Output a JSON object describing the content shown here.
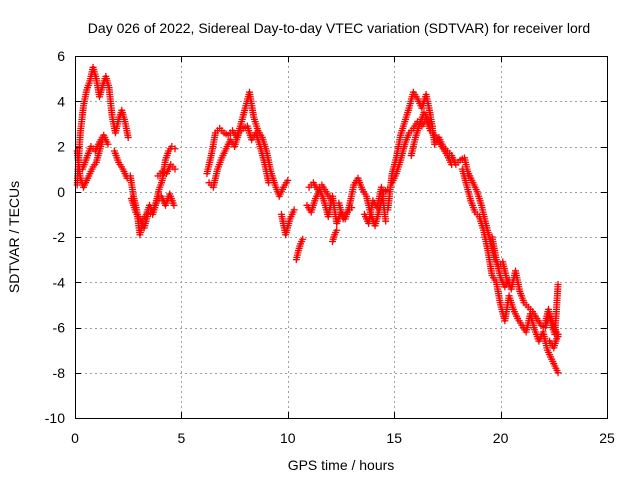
{
  "chart_data": {
    "type": "scatter",
    "title": "Day 026 of 2022, Sidereal Day-to-day VTEC variation (SDTVAR) for receiver lord",
    "xlabel": "GPS time / hours",
    "ylabel": "SDTVAR / TECUs",
    "xlim": [
      0,
      25
    ],
    "ylim": [
      -10,
      6
    ],
    "xticks": [
      0,
      5,
      10,
      15,
      20,
      25
    ],
    "yticks": [
      -10,
      -8,
      -6,
      -4,
      -2,
      0,
      2,
      4,
      6
    ],
    "xtick_labels": [
      "0",
      "5",
      "10",
      "15",
      "20",
      "25"
    ],
    "ytick_labels": [
      "-10",
      "-8",
      "-6",
      "-4",
      "-2",
      "0",
      "2",
      "4",
      "6"
    ],
    "grid": true,
    "marker": "plus",
    "color": "#ff0000",
    "series": [
      {
        "name": "SDTVAR",
        "segments": [
          {
            "x": [
              0.1,
              0.25,
              0.4,
              0.55,
              0.7,
              0.85,
              1.0,
              1.15,
              1.3,
              1.45,
              1.6,
              1.75,
              1.9,
              2.05,
              2.2,
              2.35,
              2.5
            ],
            "y": [
              0.3,
              2.6,
              3.8,
              4.5,
              4.9,
              5.5,
              5.0,
              4.2,
              4.7,
              5.1,
              4.6,
              3.3,
              2.6,
              3.2,
              3.6,
              3.1,
              2.4
            ]
          },
          {
            "x": [
              0.1,
              0.25,
              0.4,
              0.55,
              0.7,
              0.85,
              1.0,
              1.15,
              1.3
            ],
            "y": [
              1.8,
              0.6,
              0.2,
              0.5,
              0.8,
              1.1,
              1.3,
              1.8,
              2.3
            ]
          },
          {
            "x": [
              0.35,
              0.55,
              0.75,
              0.95,
              1.15,
              1.35,
              1.55
            ],
            "y": [
              1.0,
              1.5,
              2.0,
              1.8,
              2.2,
              2.5,
              2.1
            ]
          },
          {
            "x": [
              1.85,
              2.05,
              2.25,
              2.45
            ],
            "y": [
              1.8,
              1.3,
              1.0,
              0.6
            ]
          },
          {
            "x": [
              2.6,
              2.75,
              2.9,
              3.05,
              3.2,
              3.35,
              3.5,
              3.65,
              3.8,
              3.95,
              4.1,
              4.25,
              4.4,
              4.55,
              4.7
            ],
            "y": [
              0.7,
              -0.2,
              -0.8,
              -1.9,
              -1.2,
              -1.0,
              -0.6,
              -0.9,
              -0.5,
              0.1,
              0.5,
              1.4,
              1.8,
              2.0,
              1.9
            ]
          },
          {
            "x": [
              2.65,
              2.85,
              3.05,
              3.25,
              3.45,
              3.65,
              3.85,
              4.05,
              4.25,
              4.45,
              4.65
            ],
            "y": [
              -0.3,
              -0.9,
              -1.2,
              -1.6,
              -0.9,
              -1.0,
              -0.4,
              -0.2,
              -0.6,
              -0.1,
              -0.6
            ]
          },
          {
            "x": [
              3.9,
              4.1,
              4.3,
              4.5,
              4.7
            ],
            "y": [
              0.7,
              0.9,
              0.8,
              1.2,
              1.0
            ]
          },
          {
            "x": [
              6.2,
              6.4,
              6.6,
              6.8,
              7.0,
              7.2,
              7.4,
              7.6,
              7.8,
              8.0,
              8.2,
              8.4,
              8.6,
              8.8,
              9.0,
              9.2,
              9.4,
              9.6,
              9.8,
              10.0
            ],
            "y": [
              0.8,
              1.6,
              2.6,
              2.8,
              2.6,
              2.5,
              2.7,
              2.4,
              3.0,
              3.7,
              4.4,
              3.3,
              2.7,
              2.4,
              1.8,
              0.9,
              0.3,
              -0.2,
              0.2,
              0.5
            ]
          },
          {
            "x": [
              6.3,
              6.5,
              6.7,
              6.9,
              7.1,
              7.3,
              7.5,
              7.7,
              7.9,
              8.1,
              8.3,
              8.5,
              8.7,
              8.9,
              9.1
            ],
            "y": [
              0.4,
              0.2,
              1.0,
              1.5,
              1.9,
              2.3,
              2.0,
              2.6,
              2.8,
              2.9,
              2.3,
              2.6,
              2.0,
              1.3,
              0.4
            ]
          },
          {
            "x": [
              9.7,
              9.9,
              10.1,
              10.3
            ],
            "y": [
              -1.0,
              -1.9,
              -1.2,
              -0.8
            ]
          },
          {
            "x": [
              10.4,
              10.5,
              10.6,
              10.7
            ],
            "y": [
              -3.0,
              -2.6,
              -2.3,
              -2.1
            ]
          },
          {
            "x": [
              10.9,
              11.1,
              11.3,
              11.5,
              11.7,
              11.9,
              12.1,
              12.3,
              12.5,
              12.7,
              12.9,
              13.1,
              13.3,
              13.5,
              13.7,
              13.9,
              14.1,
              14.3,
              14.5,
              14.7
            ],
            "y": [
              -0.6,
              -0.9,
              -0.3,
              0.1,
              -0.4,
              -1.1,
              -0.2,
              -1.4,
              -0.9,
              -1.2,
              -0.6,
              0.3,
              0.6,
              0.1,
              -0.2,
              -1.0,
              -1.5,
              -0.8,
              0.0,
              0.1
            ]
          },
          {
            "x": [
              11.0,
              11.2,
              11.4,
              11.6,
              11.8,
              12.0
            ],
            "y": [
              0.2,
              0.4,
              0.1,
              0.3,
              0.0,
              -0.3
            ]
          },
          {
            "x": [
              12.1,
              12.2,
              12.3
            ],
            "y": [
              -2.2,
              -1.9,
              -1.7
            ]
          },
          {
            "x": [
              12.4,
              12.6,
              12.8,
              13.0
            ],
            "y": [
              -0.5,
              -1.2,
              -0.9,
              -0.7
            ]
          },
          {
            "x": [
              13.6,
              13.8,
              14.0,
              14.2,
              14.4,
              14.6
            ],
            "y": [
              -1.0,
              -1.4,
              -0.4,
              -0.7,
              0.2,
              -1.3
            ]
          },
          {
            "x": [
              14.7,
              14.9,
              15.1,
              15.3,
              15.5,
              15.7,
              15.9,
              16.1,
              16.3,
              16.5,
              16.7,
              16.9,
              17.1,
              17.3,
              17.5,
              17.7,
              17.9,
              18.1,
              18.3,
              18.5
            ],
            "y": [
              -0.8,
              0.8,
              1.5,
              2.5,
              3.1,
              3.7,
              4.4,
              4.1,
              3.7,
              4.3,
              3.4,
              2.1,
              2.4,
              2.0,
              1.8,
              1.6,
              1.2,
              1.4,
              1.5,
              0.7
            ]
          },
          {
            "x": [
              14.9,
              15.1,
              15.3,
              15.5,
              15.7,
              15.9,
              16.1,
              16.3,
              16.5,
              16.7,
              16.9,
              17.1,
              17.3,
              17.5,
              17.7
            ],
            "y": [
              0.4,
              0.8,
              1.4,
              2.1,
              2.6,
              2.8,
              3.1,
              2.9,
              3.2,
              2.7,
              2.5,
              2.2,
              1.9,
              1.6,
              1.2
            ]
          },
          {
            "x": [
              15.8,
              16.0,
              16.2,
              16.4,
              16.6,
              16.8
            ],
            "y": [
              1.6,
              2.4,
              3.0,
              3.5,
              3.2,
              2.9
            ]
          },
          {
            "x": [
              18.2,
              18.4,
              18.6,
              18.8,
              19.0,
              19.2,
              19.4,
              19.6,
              19.8,
              20.0,
              20.2,
              20.4,
              20.6,
              20.8,
              21.0,
              21.2,
              21.4,
              21.6,
              21.8,
              22.0,
              22.2,
              22.4,
              22.6,
              22.7
            ],
            "y": [
              1.0,
              0.3,
              -0.4,
              -0.9,
              -1.1,
              -1.7,
              -2.6,
              -3.7,
              -4.0,
              -5.0,
              -5.7,
              -4.6,
              -5.2,
              -5.6,
              -5.9,
              -6.2,
              -5.4,
              -6.1,
              -6.6,
              -6.2,
              -7.0,
              -7.4,
              -7.8,
              -8.0
            ]
          },
          {
            "x": [
              18.5,
              18.7,
              18.9,
              19.1,
              19.3,
              19.5,
              19.7,
              19.9,
              20.1,
              20.3,
              20.5,
              20.7,
              20.9,
              21.1,
              21.3,
              21.5,
              21.7,
              21.9,
              22.1,
              22.3,
              22.5,
              22.7
            ],
            "y": [
              0.8,
              0.4,
              0.0,
              -0.6,
              -1.4,
              -2.1,
              -2.9,
              -3.3,
              -3.1,
              -3.9,
              -4.3,
              -3.5,
              -4.4,
              -4.9,
              -5.1,
              -5.3,
              -5.6,
              -5.9,
              -6.0,
              -5.4,
              -5.9,
              -6.4
            ]
          },
          {
            "x": [
              19.6,
              19.8,
              20.0,
              20.2,
              20.4
            ],
            "y": [
              -2.0,
              -3.0,
              -3.8,
              -4.2,
              -3.9
            ]
          },
          {
            "x": [
              22.1,
              22.25,
              22.4,
              22.55,
              22.7
            ],
            "y": [
              -5.8,
              -5.2,
              -5.9,
              -6.3,
              -4.1
            ]
          },
          {
            "x": [
              22.3,
              22.5,
              22.7
            ],
            "y": [
              -6.6,
              -6.9,
              -6.3
            ]
          }
        ]
      }
    ]
  }
}
